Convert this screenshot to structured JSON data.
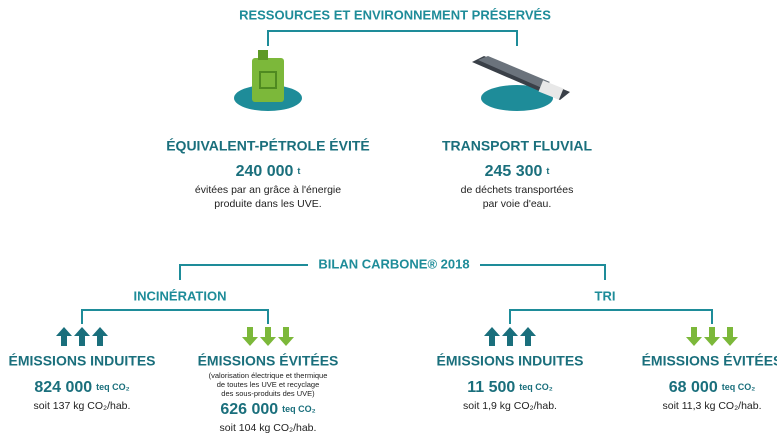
{
  "top": {
    "title": "RESSOURCES ET ENVIRONNEMENT PRÉSERVÉS",
    "items": [
      {
        "title": "ÉQUIVALENT-PÉTROLE ÉVITÉ",
        "value": "240 000",
        "unit": "t",
        "desc": [
          "évitées par an grâce à l'énergie",
          "produite dans les UVE."
        ]
      },
      {
        "title": "TRANSPORT FLUVIAL",
        "value": "245 300",
        "unit": "t",
        "desc": [
          "de déchets transportées",
          "par voie d'eau."
        ]
      }
    ]
  },
  "bilan": {
    "title": "BILAN CARBONE® 2018",
    "groups": [
      {
        "title": "INCINÉRATION",
        "items": [
          {
            "title": "ÉMISSIONS INDUITES",
            "value": "824 000",
            "unit": "teq CO₂",
            "sub": "soit 137 kg CO₂/hab."
          },
          {
            "title": "ÉMISSIONS ÉVITÉES",
            "note": [
              "(valorisation électrique et thermique",
              "de toutes les UVE et recyclage",
              "des sous-produits des UVE)"
            ],
            "value": "626 000",
            "unit": "teq CO₂",
            "sub": "soit 104 kg CO₂/hab."
          }
        ]
      },
      {
        "title": "TRI",
        "items": [
          {
            "title": "ÉMISSIONS INDUITES",
            "value": "11 500",
            "unit": "teq CO₂",
            "sub": "soit 1,9 kg CO₂/hab."
          },
          {
            "title": "ÉMISSIONS ÉVITÉES",
            "value": "68 000",
            "unit": "teq CO₂",
            "sub": "soit 11,3 kg CO₂/hab."
          }
        ]
      }
    ]
  }
}
